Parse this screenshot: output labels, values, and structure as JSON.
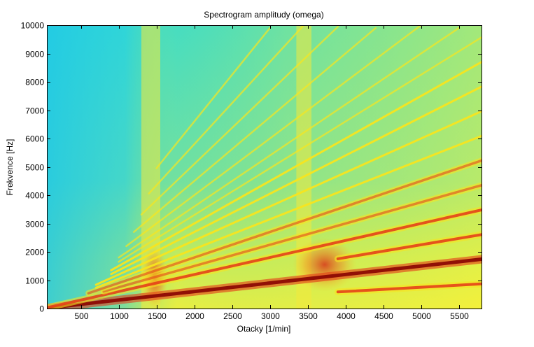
{
  "chart_data": {
    "type": "heatmap",
    "title": "Spectrogram amplitudy (omega)",
    "xlabel": "Otacky [1/min]",
    "ylabel": "Frekvence [Hz]",
    "xlim": [
      50,
      5800
    ],
    "ylim": [
      0,
      10000
    ],
    "xticks": [
      500,
      1000,
      1500,
      2000,
      2500,
      3000,
      3500,
      4000,
      4500,
      5000,
      5500
    ],
    "yticks": [
      0,
      1000,
      2000,
      3000,
      4000,
      5000,
      6000,
      7000,
      8000,
      9000,
      10000
    ],
    "colormap": "jet",
    "background_colors": {
      "low": "#22d6e0",
      "mid": "#5fe0a0",
      "high": "#f4f23a"
    },
    "colors": {
      "order_line": "#f7e51f",
      "order_line_strong": "#e43818",
      "order_line_peak": "#8c0a04",
      "resonance_band": "#f2ea3d",
      "hotspot": "#e6491c"
    },
    "order_lines": [
      {
        "slope_hz_per_rpm": 0.15,
        "x_from": 3900,
        "x_to": 5800,
        "intensity": "high"
      },
      {
        "slope_hz_per_rpm": 0.3,
        "x_from": 50,
        "x_to": 5800,
        "intensity": "peak"
      },
      {
        "slope_hz_per_rpm": 0.45,
        "x_from": 3900,
        "x_to": 5800,
        "intensity": "high"
      },
      {
        "slope_hz_per_rpm": 0.6,
        "x_from": 50,
        "x_to": 5800,
        "intensity": "high"
      },
      {
        "slope_hz_per_rpm": 0.75,
        "x_from": 800,
        "x_to": 5800,
        "intensity": "medium"
      },
      {
        "slope_hz_per_rpm": 0.9,
        "x_from": 600,
        "x_to": 5800,
        "intensity": "medium"
      },
      {
        "slope_hz_per_rpm": 1.05,
        "x_from": 700,
        "x_to": 5800,
        "intensity": "low"
      },
      {
        "slope_hz_per_rpm": 1.2,
        "x_from": 700,
        "x_to": 5800,
        "intensity": "low"
      },
      {
        "slope_hz_per_rpm": 1.35,
        "x_from": 900,
        "x_to": 5800,
        "intensity": "low"
      },
      {
        "slope_hz_per_rpm": 1.5,
        "x_from": 900,
        "x_to": 5800,
        "intensity": "low"
      },
      {
        "slope_hz_per_rpm": 1.65,
        "x_from": 1000,
        "x_to": 5800,
        "intensity": "faint"
      },
      {
        "slope_hz_per_rpm": 1.8,
        "x_from": 1000,
        "x_to": 5500,
        "intensity": "faint"
      },
      {
        "slope_hz_per_rpm": 2.0,
        "x_from": 1100,
        "x_to": 5000,
        "intensity": "faint"
      },
      {
        "slope_hz_per_rpm": 2.25,
        "x_from": 1200,
        "x_to": 4400,
        "intensity": "faint"
      },
      {
        "slope_hz_per_rpm": 2.55,
        "x_from": 1300,
        "x_to": 3900,
        "intensity": "faint"
      },
      {
        "slope_hz_per_rpm": 2.9,
        "x_from": 1400,
        "x_to": 3450,
        "intensity": "faint"
      },
      {
        "slope_hz_per_rpm": 3.3,
        "x_from": 1500,
        "x_to": 3000,
        "intensity": "faint"
      }
    ],
    "resonance_bands_rpm": [
      {
        "x_from": 1300,
        "x_to": 1550
      },
      {
        "x_from": 3350,
        "x_to": 3550
      }
    ],
    "hotspots": [
      {
        "x_from": 1300,
        "x_to": 1650,
        "y_from": 0,
        "y_to": 2200
      },
      {
        "x_from": 3300,
        "x_to": 4150,
        "y_from": 600,
        "y_to": 2500
      }
    ]
  }
}
